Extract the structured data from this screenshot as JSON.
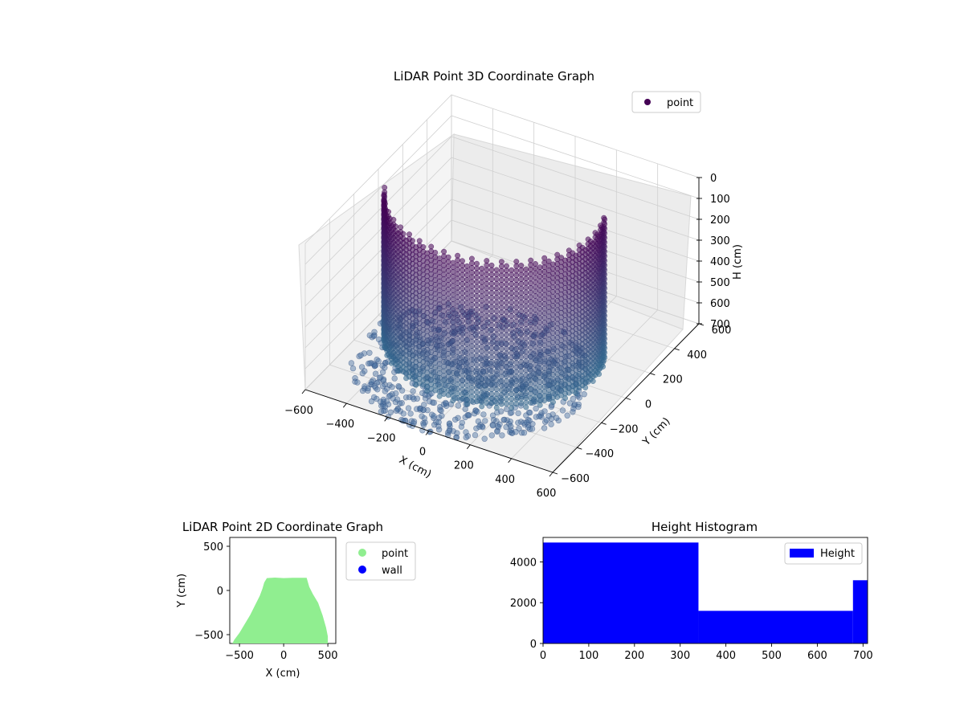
{
  "chart_data": [
    {
      "type": "scatter",
      "title": "LiDAR Point 3D Coordinate Graph",
      "xlabel": "X (cm)",
      "ylabel": "Y (cm)",
      "zlabel": "H (cm)",
      "x_ticks": [
        -600,
        -400,
        -200,
        0,
        200,
        400,
        600
      ],
      "y_ticks": [
        -600,
        -400,
        -200,
        0,
        200,
        400,
        600
      ],
      "z_ticks": [
        0,
        100,
        200,
        300,
        400,
        500,
        600,
        700
      ],
      "xlim": [
        -600,
        600
      ],
      "ylim": [
        -600,
        600
      ],
      "zlim": [
        700,
        0
      ],
      "z_inverted": true,
      "legend": {
        "position": "top-right",
        "entries": [
          {
            "label": "point",
            "color": "#440154"
          }
        ]
      },
      "series": [
        {
          "name": "point",
          "description_colors": [
            "#440154",
            "#31688e"
          ],
          "point_groups": [
            {
              "shape": "arc",
              "cx": -60,
              "cy": 40,
              "radius": 480,
              "angle_start_deg": 200,
              "angle_end_deg": 380,
              "h_top": 0,
              "h_bottom": 700
            },
            {
              "shape": "disk",
              "cx": -60,
              "cy": -150,
              "radius": 520,
              "h": 700
            }
          ]
        }
      ]
    },
    {
      "type": "scatter",
      "title": "LiDAR Point 2D Coordinate Graph",
      "xlabel": "X (cm)",
      "ylabel": "Y (cm)",
      "x_ticks": [
        -500,
        0,
        500
      ],
      "y_ticks": [
        -500,
        0,
        500
      ],
      "xlim": [
        -610,
        590
      ],
      "ylim": [
        -600,
        600
      ],
      "legend": {
        "position": "outside-right",
        "entries": [
          {
            "label": "point",
            "color": "#90ee90"
          },
          {
            "label": "wall",
            "color": "#0000ff"
          }
        ]
      },
      "outline": [
        [
          -580,
          -600
        ],
        [
          -560,
          -560
        ],
        [
          -500,
          -480
        ],
        [
          -440,
          -380
        ],
        [
          -380,
          -280
        ],
        [
          -330,
          -180
        ],
        [
          -270,
          -60
        ],
        [
          -240,
          20
        ],
        [
          -220,
          90
        ],
        [
          -190,
          140
        ],
        [
          -100,
          145
        ],
        [
          0,
          140
        ],
        [
          100,
          143
        ],
        [
          260,
          143
        ],
        [
          290,
          40
        ],
        [
          330,
          -40
        ],
        [
          390,
          -140
        ],
        [
          440,
          -280
        ],
        [
          480,
          -420
        ],
        [
          500,
          -520
        ],
        [
          500,
          -600
        ]
      ]
    },
    {
      "type": "bar",
      "title": "Height Histogram",
      "xlabel": "",
      "ylabel": "",
      "x_ticks": [
        0,
        100,
        200,
        300,
        400,
        500,
        600,
        700
      ],
      "y_ticks": [
        0,
        2000,
        4000
      ],
      "xlim": [
        0,
        710
      ],
      "ylim": [
        0,
        5200
      ],
      "legend": {
        "position": "top-right",
        "entries": [
          {
            "label": "Height",
            "color": "#0000ff"
          }
        ]
      },
      "bins": [
        {
          "x0": 0,
          "x1": 340,
          "count": 4950
        },
        {
          "x0": 340,
          "x1": 678,
          "count": 1600
        },
        {
          "x0": 678,
          "x1": 710,
          "count": 3100
        }
      ]
    }
  ]
}
